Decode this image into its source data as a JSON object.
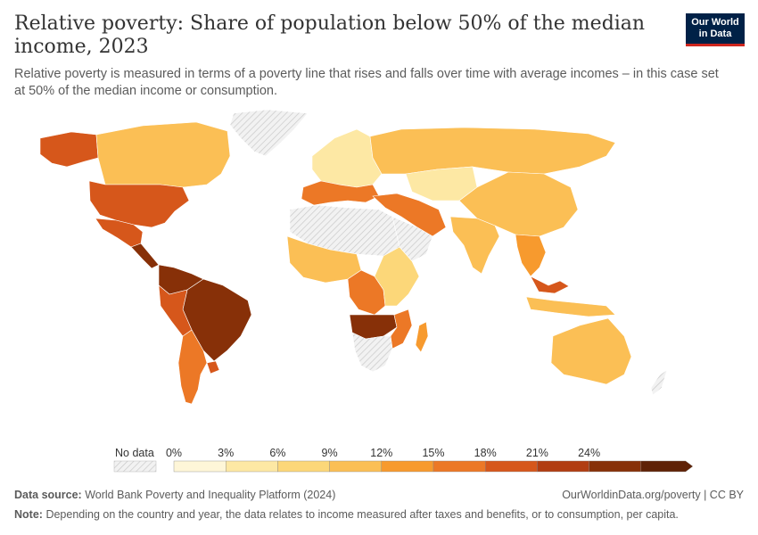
{
  "header": {
    "title": "Relative poverty: Share of population below 50% of the median income, 2023",
    "subtitle": "Relative poverty is measured in terms of a poverty line that rises and falls over time with average incomes – in this case set at 50% of the median income or consumption.",
    "logo_line1": "Our World",
    "logo_line2": "in Data"
  },
  "colors": {
    "no_data": "#eeeeee",
    "bins": [
      "#fef6d8",
      "#fde8a4",
      "#fcd779",
      "#fbbf55",
      "#f79a2e",
      "#ec7826",
      "#d6571b",
      "#b13d12",
      "#873008",
      "#5f2206"
    ],
    "border": "#ffffff",
    "logo_bg": "#002147",
    "logo_accent": "#ce261e"
  },
  "legend": {
    "no_data_label": "No data",
    "ticks": [
      "0%",
      "3%",
      "6%",
      "9%",
      "12%",
      "15%",
      "18%",
      "21%",
      "24%"
    ]
  },
  "regions": [
    {
      "name": "Alaska",
      "bin": 6
    },
    {
      "name": "Canada",
      "bin": 3
    },
    {
      "name": "United States",
      "bin": 6
    },
    {
      "name": "Mexico",
      "bin": 6
    },
    {
      "name": "Central America",
      "bin": 8
    },
    {
      "name": "Colombia / Venezuela",
      "bin": 8
    },
    {
      "name": "Brazil",
      "bin": 8
    },
    {
      "name": "Peru / Bolivia",
      "bin": 6
    },
    {
      "name": "Argentina / Chile",
      "bin": 5
    },
    {
      "name": "Uruguay",
      "bin": 6
    },
    {
      "name": "Greenland",
      "bin": null
    },
    {
      "name": "Europe",
      "bin": 1
    },
    {
      "name": "Southern Europe",
      "bin": 5
    },
    {
      "name": "Russia",
      "bin": 3
    },
    {
      "name": "Kazakhstan / Central Asia",
      "bin": 1
    },
    {
      "name": "Turkey / Middle East",
      "bin": 5
    },
    {
      "name": "Saudi Arabia",
      "bin": null
    },
    {
      "name": "China",
      "bin": 3
    },
    {
      "name": "India",
      "bin": 3
    },
    {
      "name": "Southeast Asia",
      "bin": 4
    },
    {
      "name": "Malaysia",
      "bin": 6
    },
    {
      "name": "Indonesia",
      "bin": 3
    },
    {
      "name": "Australia",
      "bin": 3
    },
    {
      "name": "New Zealand",
      "bin": null
    },
    {
      "name": "North Africa",
      "bin": null
    },
    {
      "name": "West Africa",
      "bin": 3
    },
    {
      "name": "Central Africa",
      "bin": 5
    },
    {
      "name": "East Africa",
      "bin": 2
    },
    {
      "name": "Angola / Zambia",
      "bin": 8
    },
    {
      "name": "Mozambique",
      "bin": 5
    },
    {
      "name": "Southern Africa",
      "bin": null
    },
    {
      "name": "Madagascar",
      "bin": 4
    }
  ],
  "footer": {
    "source_label": "Data source:",
    "source_text": "World Bank Poverty and Inequality Platform (2024)",
    "url": "OurWorldinData.org/poverty | CC BY",
    "note_label": "Note:",
    "note_text": "Depending on the country and year, the data relates to income measured after taxes and benefits, or to consumption, per capita."
  }
}
